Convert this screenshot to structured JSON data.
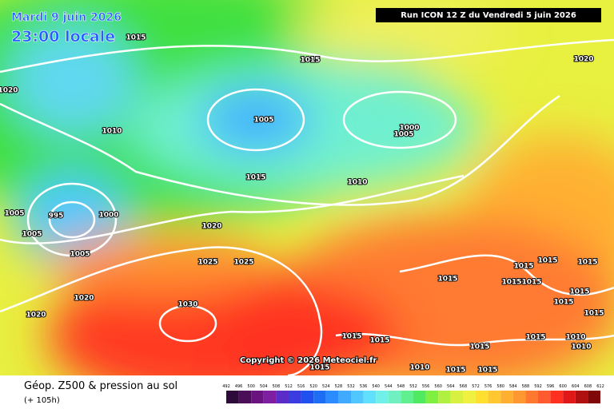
{
  "header": {
    "date": "Mardi 9 juin 2026",
    "time": "23:00 locale",
    "run": "Run ICON 12 Z du Vendredi 5 juin 2026"
  },
  "copyright": "Copyright © 2026 Meteociel.fr",
  "footer": {
    "title": "Géop. Z500 & pression au sol",
    "lead": "(+ 105h)"
  },
  "isobar_labels": [
    "1015",
    "1015",
    "1020",
    "1020",
    "1005",
    "1000",
    "1005",
    "1010",
    "1015",
    "1010",
    "1005",
    "995",
    "1000",
    "1005",
    "1005",
    "1020",
    "1025",
    "1025",
    "1015",
    "1015",
    "1015",
    "1015",
    "1015",
    "1015",
    "1015",
    "1015",
    "1020",
    "1020",
    "1030",
    "1015",
    "1015",
    "1015",
    "1015",
    "1010",
    "1015",
    "1010",
    "1015",
    "1010",
    "1015",
    "1015"
  ],
  "scale": {
    "labels": [
      492,
      496,
      500,
      504,
      508,
      512,
      516,
      520,
      524,
      528,
      532,
      536,
      540,
      544,
      548,
      552,
      556,
      560,
      564,
      568,
      572,
      576,
      580,
      584,
      588,
      592,
      596,
      600,
      604,
      608,
      612
    ],
    "colors": [
      "#2d0a3a",
      "#4b0f5a",
      "#6a1480",
      "#7d1fa0",
      "#5a2dc8",
      "#3a3ce0",
      "#2050f0",
      "#1e6ef5",
      "#2a8cff",
      "#40aaff",
      "#50c8ff",
      "#60e0ff",
      "#70f0e8",
      "#70f0c0",
      "#60f090",
      "#50ea60",
      "#80f040",
      "#b0f040",
      "#d8f040",
      "#f0f040",
      "#ffe030",
      "#ffc830",
      "#ffb030",
      "#ff9830",
      "#ff7830",
      "#ff5a30",
      "#ff3020",
      "#e01818",
      "#b01010",
      "#800808"
    ]
  }
}
